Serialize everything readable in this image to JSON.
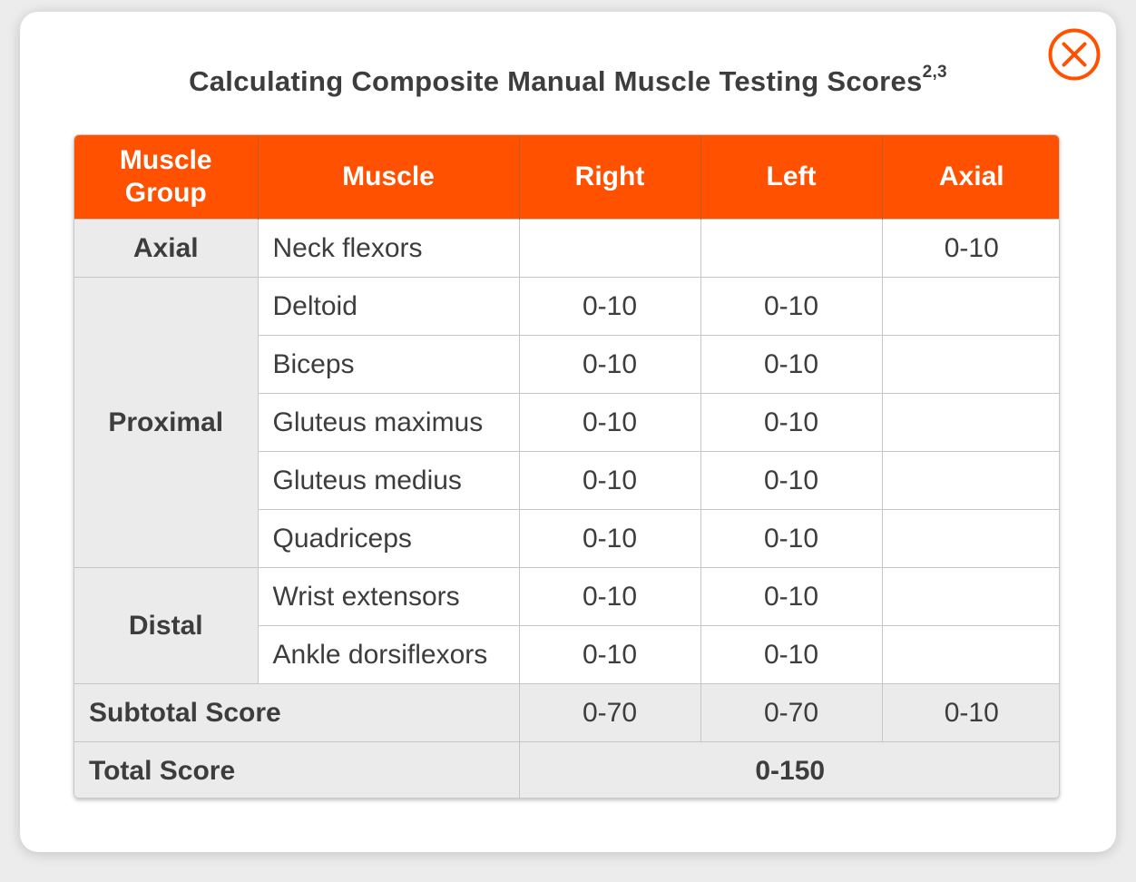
{
  "modal": {
    "title": "Calculating Composite Manual Muscle Testing Scores",
    "title_sup": "2,3",
    "close_icon": "close-circle-icon",
    "accent_color": "#ff5100"
  },
  "table": {
    "headers": {
      "group": "Muscle Group",
      "muscle": "Muscle",
      "right": "Right",
      "left": "Left",
      "axial": "Axial"
    },
    "groups": {
      "axial": "Axial",
      "proximal": "Proximal",
      "distal": "Distal"
    },
    "rows": [
      {
        "muscle": "Neck flexors",
        "right": "",
        "left": "",
        "axial": "0-10"
      },
      {
        "muscle": "Deltoid",
        "right": "0-10",
        "left": "0-10",
        "axial": ""
      },
      {
        "muscle": "Biceps",
        "right": "0-10",
        "left": "0-10",
        "axial": ""
      },
      {
        "muscle": "Gluteus maximus",
        "right": "0-10",
        "left": "0-10",
        "axial": ""
      },
      {
        "muscle": "Gluteus medius",
        "right": "0-10",
        "left": "0-10",
        "axial": ""
      },
      {
        "muscle": "Quadriceps",
        "right": "0-10",
        "left": "0-10",
        "axial": ""
      },
      {
        "muscle": "Wrist extensors",
        "right": "0-10",
        "left": "0-10",
        "axial": ""
      },
      {
        "muscle": "Ankle dorsiflexors",
        "right": "0-10",
        "left": "0-10",
        "axial": ""
      }
    ],
    "subtotal": {
      "label": "Subtotal Score",
      "right": "0-70",
      "left": "0-70",
      "axial": "0-10"
    },
    "total": {
      "label": "Total Score",
      "value": "0-150"
    }
  }
}
